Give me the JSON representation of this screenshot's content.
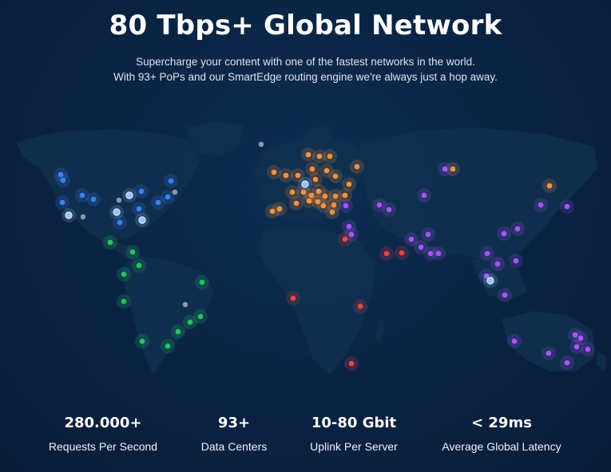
{
  "header": {
    "title": "80 Tbps+ Global Network",
    "subtitle_line1": "Supercharge your content with one of the fastest networks in the world.",
    "subtitle_line2": "With 93+ PoPs and our SmartEdge routing engine we're always just a hop away."
  },
  "map": {
    "colors": {
      "land": "#10304f",
      "north_america": "#3b82f6",
      "north_america_highlight": "#93c5fd",
      "south_america": "#22c55e",
      "europe": "#fb923c",
      "asia_oceania": "#a855f7",
      "africa_middle_east": "#ef4444",
      "inactive": "#8a98a8"
    }
  },
  "stats": [
    {
      "value": "280.000+",
      "label": "Requests Per Second"
    },
    {
      "value": "93+",
      "label": "Data Centers"
    },
    {
      "value": "10-80 Gbit",
      "label": "Uplink Per Server"
    },
    {
      "value": "< 29ms",
      "label": "Average Global Latency"
    }
  ]
}
